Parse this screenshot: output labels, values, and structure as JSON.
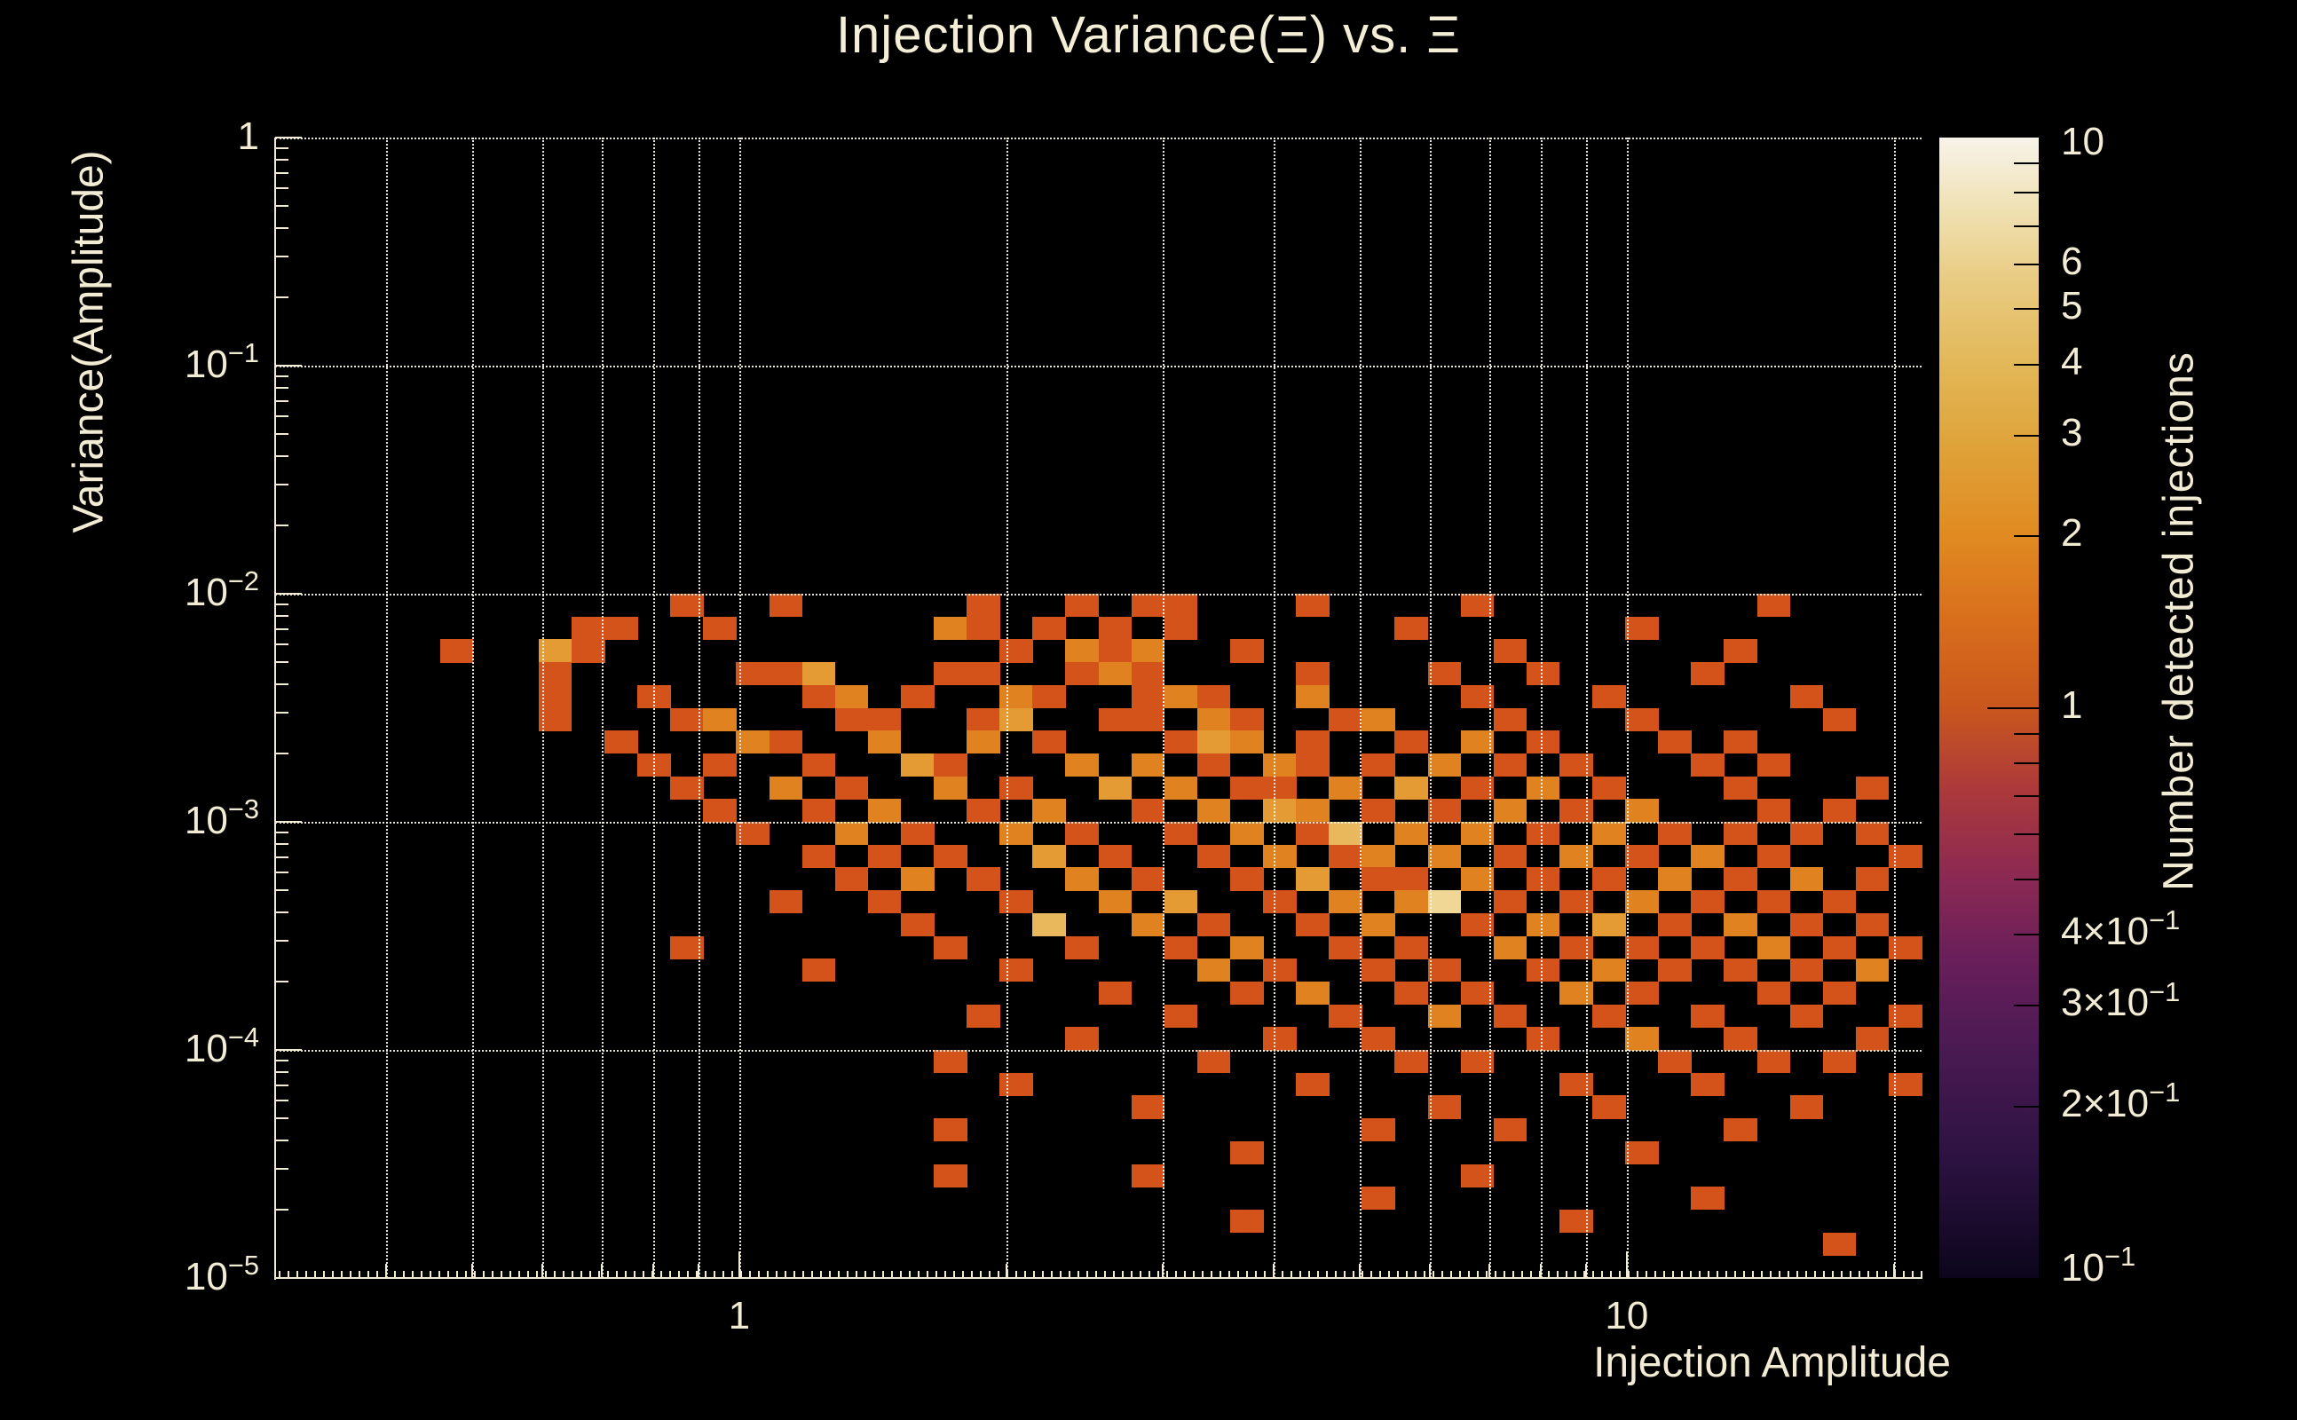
{
  "title": "Injection Variance(Ξ) vs. Ξ",
  "colors": {
    "background": "#000000",
    "text": "#f3ecd4",
    "axis": "#f3ecd4",
    "grid": "rgba(250,246,233,0.92)"
  },
  "chart_data": {
    "type": "heatmap",
    "title": "Injection Variance(Ξ) vs. Ξ",
    "xlabel": "Injection Amplitude",
    "ylabel": "Variance(Amplitude)",
    "zlabel": "Number detected injections",
    "x_log": true,
    "y_log": true,
    "z_log": true,
    "x_range": [
      0.3,
      21.5
    ],
    "y_range": [
      1e-05,
      1
    ],
    "z_range": [
      0.1,
      10
    ],
    "n_bins_x": 50,
    "n_bins_y": 50,
    "grid": true,
    "x_major_ticks": [
      {
        "v": 1,
        "label": "1"
      },
      {
        "v": 10,
        "label": "10"
      }
    ],
    "x_minor_grid": [
      0.4,
      0.5,
      0.6,
      0.7,
      0.8,
      0.9,
      2,
      3,
      4,
      5,
      6,
      7,
      8,
      9,
      20
    ],
    "y_major_ticks": [
      {
        "v": 1,
        "label": "1"
      },
      {
        "v": 0.1,
        "label": "10^-1"
      },
      {
        "v": 0.01,
        "label": "10^-2"
      },
      {
        "v": 0.001,
        "label": "10^-3"
      },
      {
        "v": 0.0001,
        "label": "10^-4"
      },
      {
        "v": 1e-05,
        "label": "10^-5"
      }
    ],
    "colorbar_labeled_ticks": [
      {
        "v": 10,
        "label": "10"
      },
      {
        "v": 6,
        "label": "6"
      },
      {
        "v": 5,
        "label": "5"
      },
      {
        "v": 4,
        "label": "4"
      },
      {
        "v": 3,
        "label": "3"
      },
      {
        "v": 2,
        "label": "2"
      },
      {
        "v": 1,
        "label": "1"
      },
      {
        "v": 0.4,
        "label": "4×10^-1"
      },
      {
        "v": 0.3,
        "label": "3×10^-1"
      },
      {
        "v": 0.2,
        "label": "2×10^-1"
      },
      {
        "v": 0.1,
        "label": "10^-1"
      }
    ],
    "colorbar_minor_ticks": [
      0.2,
      0.3,
      0.4,
      0.5,
      0.6,
      0.7,
      0.8,
      0.9,
      2,
      3,
      4,
      5,
      6,
      7,
      8,
      9
    ],
    "colorbar_major_ticks": [
      1
    ],
    "colorbar_gradient": [
      [
        0.0,
        "#0c051c"
      ],
      [
        0.1,
        "#2b1240"
      ],
      [
        0.2,
        "#4a1a53"
      ],
      [
        0.28,
        "#691f5a"
      ],
      [
        0.35,
        "#8b2953"
      ],
      [
        0.43,
        "#ad3a3b"
      ],
      [
        0.5,
        "#c9571d"
      ],
      [
        0.58,
        "#d96f1c"
      ],
      [
        0.65,
        "#e08a21"
      ],
      [
        0.73,
        "#dfa339"
      ],
      [
        0.8,
        "#e2b757"
      ],
      [
        0.88,
        "#e9cd85"
      ],
      [
        0.94,
        "#f0e2b6"
      ],
      [
        1.0,
        "#f7f3ea"
      ]
    ],
    "count_colors": {
      "1": "#d4531b",
      "2": "#e08220",
      "3": "#e59b33",
      "4": "#e9b75c",
      "6": "#f0d795"
    },
    "cells": [
      [
        12,
        20,
        1
      ],
      [
        15,
        20,
        1
      ],
      [
        21,
        20,
        1
      ],
      [
        24,
        20,
        1
      ],
      [
        26,
        20,
        1
      ],
      [
        27,
        20,
        1
      ],
      [
        31,
        20,
        1
      ],
      [
        36,
        20,
        1
      ],
      [
        45,
        20,
        1
      ],
      [
        9,
        21,
        1
      ],
      [
        10,
        21,
        1
      ],
      [
        13,
        21,
        1
      ],
      [
        20,
        21,
        2
      ],
      [
        21,
        21,
        1
      ],
      [
        23,
        21,
        1
      ],
      [
        25,
        21,
        1
      ],
      [
        27,
        21,
        1
      ],
      [
        34,
        21,
        1
      ],
      [
        41,
        21,
        1
      ],
      [
        5,
        22,
        1
      ],
      [
        8,
        22,
        3
      ],
      [
        9,
        22,
        1
      ],
      [
        22,
        22,
        1
      ],
      [
        24,
        22,
        2
      ],
      [
        25,
        22,
        1
      ],
      [
        26,
        22,
        2
      ],
      [
        29,
        22,
        1
      ],
      [
        37,
        22,
        1
      ],
      [
        44,
        22,
        1
      ],
      [
        8,
        23,
        1
      ],
      [
        14,
        23,
        1
      ],
      [
        15,
        23,
        1
      ],
      [
        16,
        23,
        3
      ],
      [
        20,
        23,
        1
      ],
      [
        21,
        23,
        1
      ],
      [
        24,
        23,
        1
      ],
      [
        25,
        23,
        2
      ],
      [
        26,
        23,
        1
      ],
      [
        31,
        23,
        1
      ],
      [
        35,
        23,
        1
      ],
      [
        38,
        23,
        1
      ],
      [
        43,
        23,
        1
      ],
      [
        8,
        24,
        1
      ],
      [
        11,
        24,
        1
      ],
      [
        16,
        24,
        1
      ],
      [
        17,
        24,
        2
      ],
      [
        19,
        24,
        1
      ],
      [
        22,
        24,
        2
      ],
      [
        23,
        24,
        1
      ],
      [
        26,
        24,
        1
      ],
      [
        27,
        24,
        2
      ],
      [
        28,
        24,
        1
      ],
      [
        31,
        24,
        2
      ],
      [
        36,
        24,
        1
      ],
      [
        40,
        24,
        1
      ],
      [
        46,
        24,
        1
      ],
      [
        8,
        25,
        1
      ],
      [
        12,
        25,
        1
      ],
      [
        13,
        25,
        2
      ],
      [
        17,
        25,
        1
      ],
      [
        18,
        25,
        1
      ],
      [
        21,
        25,
        1
      ],
      [
        22,
        25,
        3
      ],
      [
        25,
        25,
        1
      ],
      [
        26,
        25,
        1
      ],
      [
        28,
        25,
        2
      ],
      [
        29,
        25,
        1
      ],
      [
        32,
        25,
        1
      ],
      [
        33,
        25,
        2
      ],
      [
        37,
        25,
        1
      ],
      [
        41,
        25,
        1
      ],
      [
        47,
        25,
        1
      ],
      [
        10,
        26,
        1
      ],
      [
        14,
        26,
        2
      ],
      [
        15,
        26,
        1
      ],
      [
        18,
        26,
        2
      ],
      [
        21,
        26,
        2
      ],
      [
        23,
        26,
        1
      ],
      [
        27,
        26,
        1
      ],
      [
        28,
        26,
        3
      ],
      [
        29,
        26,
        2
      ],
      [
        31,
        26,
        1
      ],
      [
        34,
        26,
        1
      ],
      [
        36,
        26,
        2
      ],
      [
        38,
        26,
        1
      ],
      [
        42,
        26,
        1
      ],
      [
        44,
        26,
        1
      ],
      [
        11,
        27,
        1
      ],
      [
        13,
        27,
        1
      ],
      [
        16,
        27,
        1
      ],
      [
        19,
        27,
        3
      ],
      [
        20,
        27,
        1
      ],
      [
        24,
        27,
        2
      ],
      [
        26,
        27,
        2
      ],
      [
        28,
        27,
        1
      ],
      [
        30,
        27,
        2
      ],
      [
        31,
        27,
        1
      ],
      [
        33,
        27,
        1
      ],
      [
        35,
        27,
        2
      ],
      [
        37,
        27,
        1
      ],
      [
        39,
        27,
        1
      ],
      [
        43,
        27,
        1
      ],
      [
        45,
        27,
        1
      ],
      [
        12,
        28,
        1
      ],
      [
        15,
        28,
        2
      ],
      [
        17,
        28,
        1
      ],
      [
        20,
        28,
        2
      ],
      [
        22,
        28,
        1
      ],
      [
        25,
        28,
        3
      ],
      [
        27,
        28,
        2
      ],
      [
        29,
        28,
        1
      ],
      [
        30,
        28,
        1
      ],
      [
        32,
        28,
        2
      ],
      [
        34,
        28,
        3
      ],
      [
        36,
        28,
        1
      ],
      [
        38,
        28,
        2
      ],
      [
        40,
        28,
        1
      ],
      [
        44,
        28,
        1
      ],
      [
        48,
        28,
        1
      ],
      [
        13,
        29,
        1
      ],
      [
        16,
        29,
        1
      ],
      [
        18,
        29,
        2
      ],
      [
        21,
        29,
        1
      ],
      [
        23,
        29,
        2
      ],
      [
        26,
        29,
        1
      ],
      [
        28,
        29,
        2
      ],
      [
        30,
        29,
        3
      ],
      [
        31,
        29,
        2
      ],
      [
        33,
        29,
        1
      ],
      [
        35,
        29,
        1
      ],
      [
        37,
        29,
        2
      ],
      [
        39,
        29,
        1
      ],
      [
        41,
        29,
        2
      ],
      [
        45,
        29,
        1
      ],
      [
        47,
        29,
        1
      ],
      [
        14,
        30,
        1
      ],
      [
        17,
        30,
        2
      ],
      [
        19,
        30,
        1
      ],
      [
        22,
        30,
        2
      ],
      [
        24,
        30,
        1
      ],
      [
        27,
        30,
        1
      ],
      [
        29,
        30,
        2
      ],
      [
        31,
        30,
        1
      ],
      [
        32,
        30,
        4
      ],
      [
        34,
        30,
        2
      ],
      [
        36,
        30,
        2
      ],
      [
        38,
        30,
        1
      ],
      [
        40,
        30,
        2
      ],
      [
        42,
        30,
        1
      ],
      [
        44,
        30,
        1
      ],
      [
        46,
        30,
        1
      ],
      [
        48,
        30,
        1
      ],
      [
        16,
        31,
        1
      ],
      [
        18,
        31,
        1
      ],
      [
        20,
        31,
        1
      ],
      [
        23,
        31,
        3
      ],
      [
        25,
        31,
        1
      ],
      [
        28,
        31,
        1
      ],
      [
        30,
        31,
        2
      ],
      [
        32,
        31,
        1
      ],
      [
        33,
        31,
        2
      ],
      [
        35,
        31,
        2
      ],
      [
        37,
        31,
        1
      ],
      [
        39,
        31,
        2
      ],
      [
        41,
        31,
        1
      ],
      [
        43,
        31,
        2
      ],
      [
        45,
        31,
        1
      ],
      [
        49,
        31,
        1
      ],
      [
        17,
        32,
        1
      ],
      [
        19,
        32,
        2
      ],
      [
        21,
        32,
        1
      ],
      [
        24,
        32,
        2
      ],
      [
        26,
        32,
        1
      ],
      [
        29,
        32,
        1
      ],
      [
        31,
        32,
        3
      ],
      [
        33,
        32,
        1
      ],
      [
        34,
        32,
        1
      ],
      [
        36,
        32,
        2
      ],
      [
        38,
        32,
        1
      ],
      [
        40,
        32,
        1
      ],
      [
        42,
        32,
        2
      ],
      [
        44,
        32,
        1
      ],
      [
        46,
        32,
        2
      ],
      [
        48,
        32,
        1
      ],
      [
        15,
        33,
        1
      ],
      [
        18,
        33,
        1
      ],
      [
        22,
        33,
        1
      ],
      [
        25,
        33,
        2
      ],
      [
        27,
        33,
        3
      ],
      [
        30,
        33,
        1
      ],
      [
        32,
        33,
        2
      ],
      [
        34,
        33,
        2
      ],
      [
        35,
        33,
        6
      ],
      [
        37,
        33,
        1
      ],
      [
        39,
        33,
        1
      ],
      [
        41,
        33,
        2
      ],
      [
        43,
        33,
        1
      ],
      [
        45,
        33,
        1
      ],
      [
        47,
        33,
        1
      ],
      [
        19,
        34,
        1
      ],
      [
        23,
        34,
        4
      ],
      [
        26,
        34,
        2
      ],
      [
        28,
        34,
        1
      ],
      [
        31,
        34,
        1
      ],
      [
        33,
        34,
        2
      ],
      [
        36,
        34,
        1
      ],
      [
        38,
        34,
        2
      ],
      [
        40,
        34,
        3
      ],
      [
        42,
        34,
        1
      ],
      [
        44,
        34,
        2
      ],
      [
        46,
        34,
        1
      ],
      [
        48,
        34,
        1
      ],
      [
        12,
        35,
        1
      ],
      [
        20,
        35,
        1
      ],
      [
        24,
        35,
        1
      ],
      [
        27,
        35,
        1
      ],
      [
        29,
        35,
        2
      ],
      [
        32,
        35,
        1
      ],
      [
        34,
        35,
        1
      ],
      [
        37,
        35,
        2
      ],
      [
        39,
        35,
        1
      ],
      [
        41,
        35,
        1
      ],
      [
        43,
        35,
        1
      ],
      [
        45,
        35,
        2
      ],
      [
        47,
        35,
        1
      ],
      [
        49,
        35,
        1
      ],
      [
        16,
        36,
        1
      ],
      [
        22,
        36,
        1
      ],
      [
        28,
        36,
        2
      ],
      [
        30,
        36,
        1
      ],
      [
        33,
        36,
        1
      ],
      [
        35,
        36,
        1
      ],
      [
        38,
        36,
        1
      ],
      [
        40,
        36,
        2
      ],
      [
        42,
        36,
        1
      ],
      [
        44,
        36,
        1
      ],
      [
        46,
        36,
        1
      ],
      [
        48,
        36,
        2
      ],
      [
        25,
        37,
        1
      ],
      [
        29,
        37,
        1
      ],
      [
        31,
        37,
        2
      ],
      [
        34,
        37,
        1
      ],
      [
        36,
        37,
        1
      ],
      [
        39,
        37,
        2
      ],
      [
        41,
        37,
        1
      ],
      [
        45,
        37,
        1
      ],
      [
        47,
        37,
        1
      ],
      [
        21,
        38,
        1
      ],
      [
        27,
        38,
        1
      ],
      [
        32,
        38,
        1
      ],
      [
        35,
        38,
        2
      ],
      [
        37,
        38,
        1
      ],
      [
        40,
        38,
        1
      ],
      [
        43,
        38,
        1
      ],
      [
        46,
        38,
        1
      ],
      [
        49,
        38,
        1
      ],
      [
        24,
        39,
        1
      ],
      [
        30,
        39,
        1
      ],
      [
        33,
        39,
        1
      ],
      [
        38,
        39,
        1
      ],
      [
        41,
        39,
        2
      ],
      [
        44,
        39,
        1
      ],
      [
        48,
        39,
        1
      ],
      [
        20,
        40,
        1
      ],
      [
        28,
        40,
        1
      ],
      [
        34,
        40,
        1
      ],
      [
        36,
        40,
        1
      ],
      [
        42,
        40,
        1
      ],
      [
        45,
        40,
        1
      ],
      [
        47,
        40,
        1
      ],
      [
        22,
        41,
        1
      ],
      [
        31,
        41,
        1
      ],
      [
        39,
        41,
        1
      ],
      [
        43,
        41,
        1
      ],
      [
        49,
        41,
        1
      ],
      [
        26,
        42,
        1
      ],
      [
        35,
        42,
        1
      ],
      [
        40,
        42,
        1
      ],
      [
        46,
        42,
        1
      ],
      [
        20,
        43,
        1
      ],
      [
        33,
        43,
        1
      ],
      [
        37,
        43,
        1
      ],
      [
        44,
        43,
        1
      ],
      [
        29,
        44,
        1
      ],
      [
        41,
        44,
        1
      ],
      [
        20,
        45,
        1
      ],
      [
        26,
        45,
        1
      ],
      [
        36,
        45,
        1
      ],
      [
        33,
        46,
        1
      ],
      [
        43,
        46,
        1
      ],
      [
        29,
        47,
        1
      ],
      [
        39,
        47,
        1
      ],
      [
        47,
        48,
        1
      ]
    ]
  }
}
